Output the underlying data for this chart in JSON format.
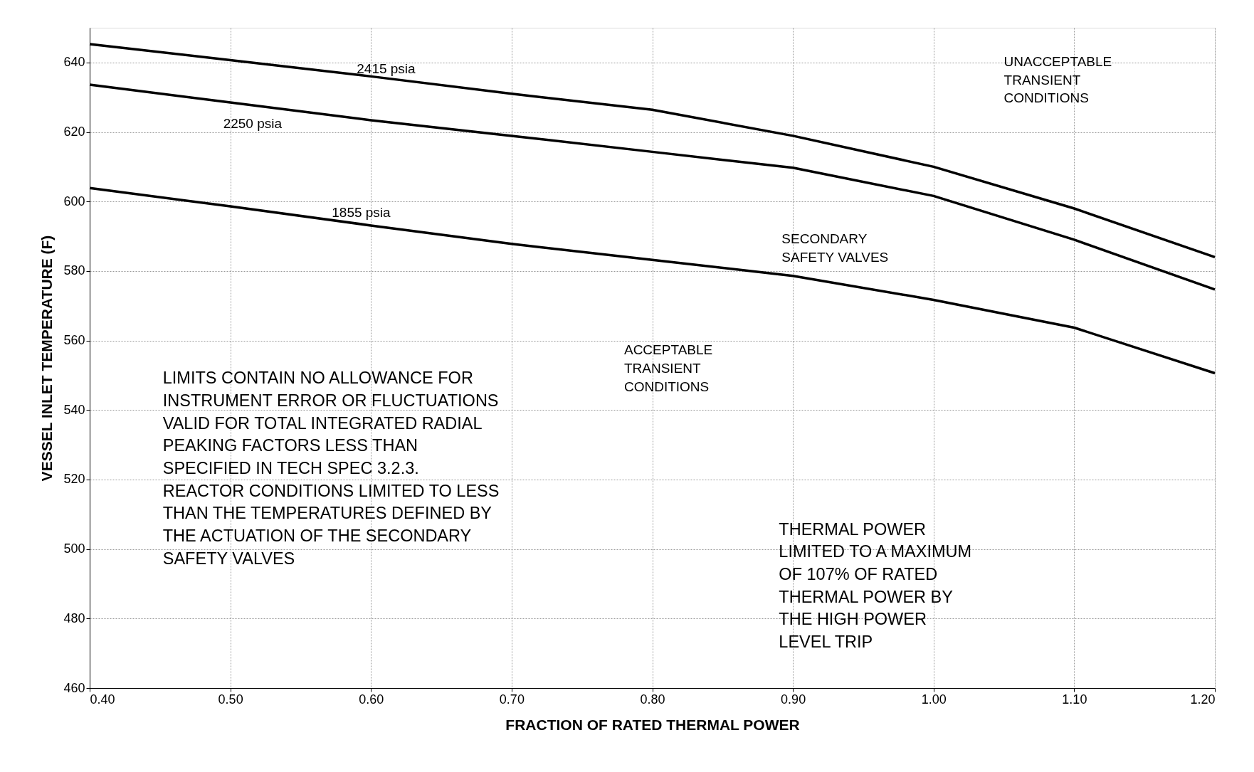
{
  "chart_data": {
    "type": "line",
    "xlabel": "FRACTION OF RATED THERMAL POWER",
    "ylabel": "VESSEL INLET TEMPERATURE (F)",
    "x": [
      0.4,
      0.5,
      0.6,
      0.7,
      0.8,
      0.9,
      1.0,
      1.1,
      1.2
    ],
    "series": [
      {
        "name": "2415 psia",
        "color": "#000000",
        "values": [
          645.3,
          640.7,
          636.0,
          631.0,
          626.4,
          618.9,
          610.0,
          598.0,
          584.0
        ]
      },
      {
        "name": "2250 psia",
        "color": "#000000",
        "values": [
          633.6,
          628.5,
          623.4,
          618.9,
          614.3,
          609.7,
          601.6,
          589.0,
          574.7
        ]
      },
      {
        "name": "1855 psia",
        "color": "#000000",
        "values": [
          603.9,
          598.6,
          593.1,
          587.8,
          583.2,
          578.6,
          571.7,
          563.7,
          550.6
        ]
      }
    ],
    "xlim": [
      0.4,
      1.2
    ],
    "ylim": [
      460,
      650
    ],
    "xticks": [
      {
        "value": 0.4,
        "label": "0.40"
      },
      {
        "value": 0.5,
        "label": "0.50"
      },
      {
        "value": 0.6,
        "label": "0.60"
      },
      {
        "value": 0.7,
        "label": "0.70"
      },
      {
        "value": 0.8,
        "label": "0.80"
      },
      {
        "value": 0.9,
        "label": "0.90"
      },
      {
        "value": 1.0,
        "label": "1.00"
      },
      {
        "value": 1.1,
        "label": "1.10"
      },
      {
        "value": 1.2,
        "label": "1.20"
      }
    ],
    "yticks": [
      460,
      480,
      500,
      520,
      540,
      560,
      580,
      600,
      620,
      640
    ],
    "grid": true,
    "legend": false,
    "marker": "none",
    "line_style": "solid",
    "annotations": [
      "UNACCEPTABLE\nTRANSIENT\nCONDITIONS",
      "SECONDARY\nSAFETY VALVES",
      "ACCEPTABLE\nTRANSIENT\nCONDITIONS",
      "LIMITS CONTAIN NO ALLOWANCE FOR\nINSTRUMENT ERROR OR FLUCTUATIONS\n\nVALID FOR TOTAL INTEGRATED RADIAL\nPEAKING FACTORS LESS THAN\nSPECIFIED IN TECH SPEC 3.2.3.\n\nREACTOR CONDITIONS LIMITED TO LESS\nTHAN THE TEMPERATURES DEFINED BY\nTHE ACTUATION OF THE SECONDARY\nSAFETY VALVES",
      "THERMAL POWER\nLIMITED TO A MAXIMUM\nOF 107% OF RATED\nTHERMAL POWER BY\nTHE HIGH POWER\nLEVEL TRIP"
    ]
  }
}
